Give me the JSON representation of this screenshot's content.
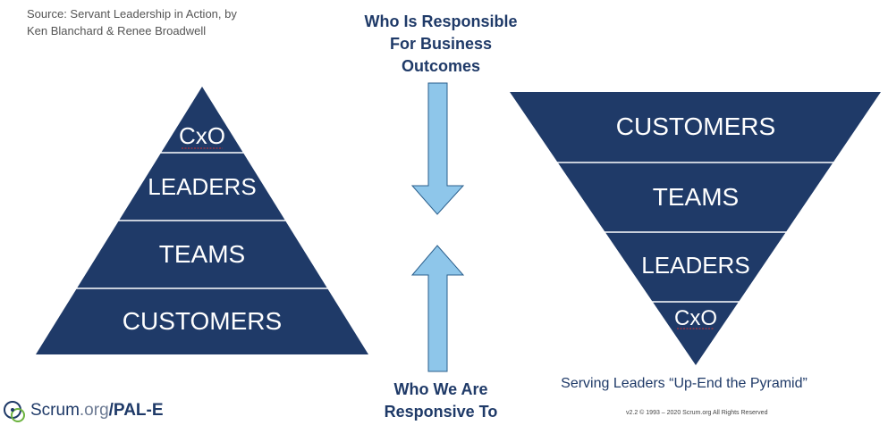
{
  "source": {
    "line1": "Source: Servant Leadership in Action, by",
    "line2": "Ken Blanchard & Renee Broadwell"
  },
  "top_label": {
    "lines": [
      "Who Is Responsible",
      "For Business",
      "Outcomes"
    ]
  },
  "bottom_label": {
    "lines": [
      "Who We Are",
      "Responsive To"
    ]
  },
  "pyramid": {
    "tiers": [
      "CxO",
      "LEADERS",
      "TEAMS",
      "CUSTOMERS"
    ]
  },
  "inverted_pyramid": {
    "tiers": [
      "CUSTOMERS",
      "TEAMS",
      "LEADERS",
      "CxO"
    ],
    "caption": "Serving Leaders “Up-End the Pyramid”"
  },
  "footer": {
    "logo_main": "Scrum",
    "logo_org": ".org",
    "logo_suffix": "/PAL-E",
    "copyright": "v2.2 © 1993 – 2020 Scrum.org All Rights Reserved"
  },
  "colors": {
    "tier_fill": "#1f3a68",
    "tier_divider": "#ffffff",
    "arrow_fill": "#8ec6ea",
    "arrow_stroke": "#2b5f8c",
    "label_text": "#1f3a68"
  }
}
